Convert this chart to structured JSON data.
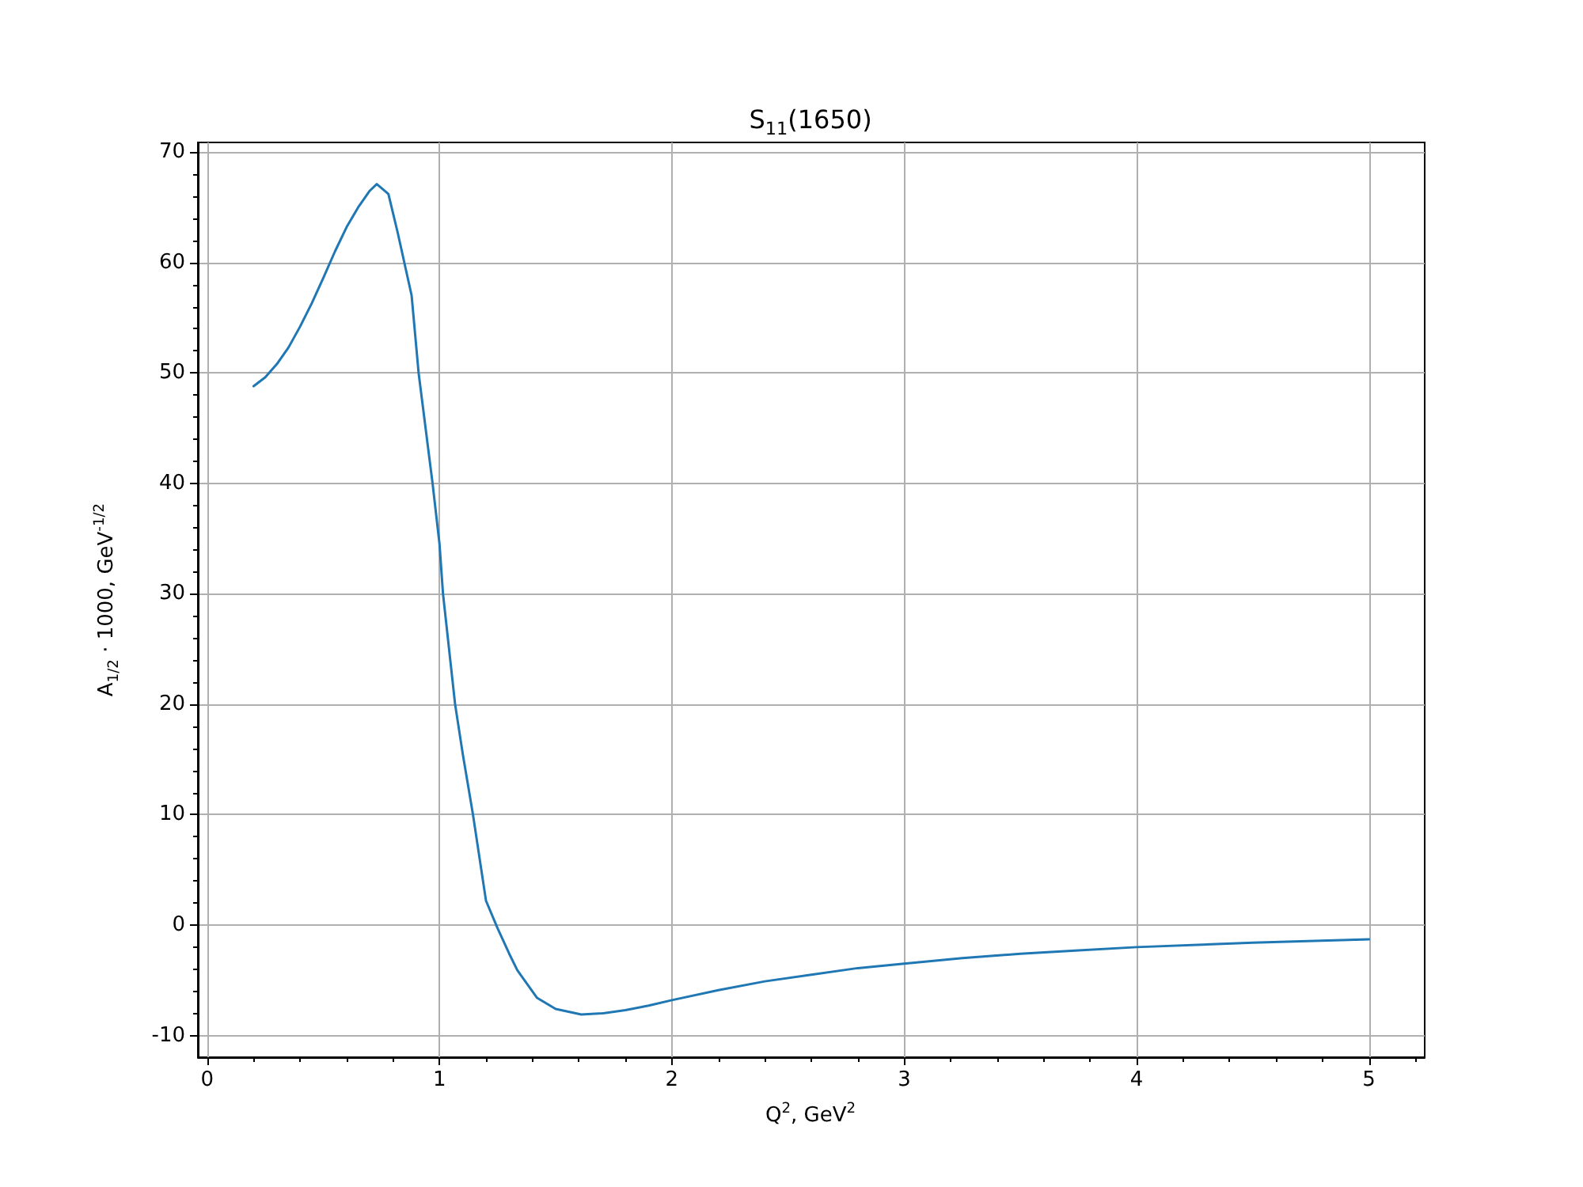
{
  "chart_data": {
    "type": "line",
    "title": "S$_{11}$(1650)",
    "xlabel": "Q$^{2}$, GeV$^{2}$",
    "ylabel": "A$_{1/2}$ · 1000, GeV$^{-1/2}$",
    "series": [
      {
        "color": "#1f77b4",
        "x": [
          0.2,
          0.25,
          0.3,
          0.35,
          0.4,
          0.45,
          0.5,
          0.55,
          0.6,
          0.65,
          0.7,
          0.73,
          0.78,
          0.82,
          0.88,
          0.91,
          0.97,
          1.0,
          1.015,
          1.067,
          1.1,
          1.144,
          1.2,
          1.25,
          1.3,
          1.335,
          1.42,
          1.5,
          1.61,
          1.7,
          1.8,
          1.9,
          2.0,
          2.2,
          2.4,
          2.6,
          2.8,
          3.0,
          3.25,
          3.5,
          3.75,
          4.0,
          4.5,
          5.0
        ],
        "values": [
          48.8,
          49.6,
          50.8,
          52.3,
          54.2,
          56.3,
          58.6,
          61.0,
          63.2,
          65.0,
          66.5,
          67.1,
          66.2,
          62.7,
          57.0,
          50,
          40,
          34.5,
          30,
          20,
          15.5,
          10,
          2.2,
          -0.3,
          -2.6,
          -4.1,
          -6.6,
          -7.6,
          -8.1,
          -8.0,
          -7.7,
          -7.3,
          -6.8,
          -5.9,
          -5.1,
          -4.5,
          -3.9,
          -3.5,
          -3.0,
          -2.6,
          -2.3,
          -2.0,
          -1.6,
          -1.3
        ]
      }
    ],
    "xlim": [
      -0.04,
      5.24
    ],
    "ylim": [
      -11.97,
      70.87
    ],
    "xticks": [
      0,
      {
        "value": 0.2,
        "label": null
      },
      {
        "value": 0.4,
        "label": null
      },
      {
        "value": 0.6,
        "label": null
      },
      {
        "value": 0.8,
        "label": null
      },
      1,
      {
        "value": 1.2,
        "label": null
      },
      {
        "value": 1.4,
        "label": null
      },
      {
        "value": 1.6,
        "label": null
      },
      {
        "value": 1.8,
        "label": null
      },
      2,
      {
        "value": 2.2,
        "label": null
      },
      {
        "value": 2.4,
        "label": null
      },
      {
        "value": 2.6,
        "label": null
      },
      {
        "value": 2.8,
        "label": null
      },
      3,
      {
        "value": 3.2,
        "label": null
      },
      {
        "value": 3.4,
        "label": null
      },
      {
        "value": 3.6,
        "label": null
      },
      {
        "value": 3.8,
        "label": null
      },
      4,
      {
        "value": 4.2,
        "label": null
      },
      {
        "value": 4.4,
        "label": null
      },
      {
        "value": 4.6,
        "label": null
      },
      {
        "value": 4.8,
        "label": null
      },
      5,
      {
        "value": 5.2,
        "label": null
      }
    ],
    "yticks": [
      -10,
      {
        "value": -8,
        "label": null
      },
      {
        "value": -6,
        "label": null
      },
      {
        "value": -4,
        "label": null
      },
      {
        "value": -2,
        "label": null
      },
      0,
      {
        "value": 2,
        "label": null
      },
      {
        "value": 4,
        "label": null
      },
      {
        "value": 6,
        "label": null
      },
      {
        "value": 8,
        "label": null
      },
      10,
      {
        "value": 12,
        "label": null
      },
      {
        "value": 14,
        "label": null
      },
      {
        "value": 16,
        "label": null
      },
      {
        "value": 18,
        "label": null
      },
      20,
      {
        "value": 22,
        "label": null
      },
      {
        "value": 24,
        "label": null
      },
      {
        "value": 26,
        "label": null
      },
      {
        "value": 28,
        "label": null
      },
      30,
      {
        "value": 32,
        "label": null
      },
      {
        "value": 34,
        "label": null
      },
      {
        "value": 36,
        "label": null
      },
      {
        "value": 38,
        "label": null
      },
      40,
      {
        "value": 42,
        "label": null
      },
      {
        "value": 44,
        "label": null
      },
      {
        "value": 46,
        "label": null
      },
      {
        "value": 48,
        "label": null
      },
      50,
      {
        "value": 52,
        "label": null
      },
      {
        "value": 54,
        "label": null
      },
      {
        "value": 56,
        "label": null
      },
      {
        "value": 58,
        "label": null
      },
      60,
      {
        "value": 62,
        "label": null
      },
      {
        "value": 64,
        "label": null
      },
      {
        "value": 66,
        "label": null
      },
      {
        "value": 68,
        "label": null
      },
      70
    ],
    "grid": true,
    "marker": "none",
    "line_style": "solid"
  }
}
